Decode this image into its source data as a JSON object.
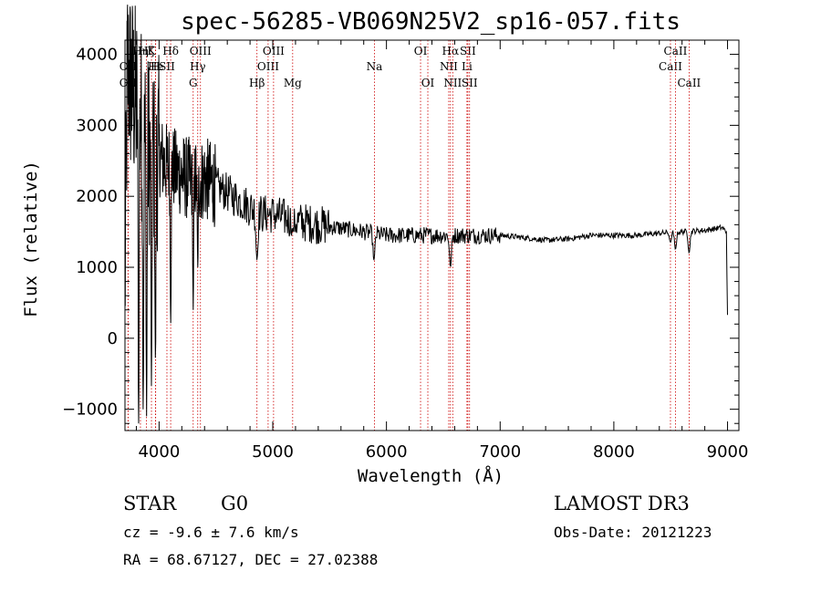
{
  "chart_data": {
    "type": "line",
    "title": "spec-56285-VB069N25V2_sp16-057.fits",
    "xlabel": "Wavelength (Å)",
    "ylabel": "Flux (relative)",
    "xlim": [
      3700,
      9100
    ],
    "ylim": [
      -1300,
      4200
    ],
    "x_ticks": [
      4000,
      5000,
      6000,
      7000,
      8000,
      9000
    ],
    "y_ticks": [
      -1000,
      0,
      1000,
      2000,
      3000,
      4000
    ],
    "series": [
      {
        "name": "flux",
        "anchors": [
          [
            3700,
            600
          ],
          [
            3720,
            3800
          ],
          [
            3750,
            3600
          ],
          [
            3800,
            3300
          ],
          [
            3850,
            3000
          ],
          [
            3900,
            2700
          ],
          [
            3950,
            2600
          ],
          [
            4000,
            2600
          ],
          [
            4050,
            2450
          ],
          [
            4100,
            2450
          ],
          [
            4150,
            2350
          ],
          [
            4200,
            2300
          ],
          [
            4250,
            2250
          ],
          [
            4300,
            2250
          ],
          [
            4350,
            2200
          ],
          [
            4400,
            2250
          ],
          [
            4500,
            2150
          ],
          [
            4600,
            2050
          ],
          [
            4700,
            1950
          ],
          [
            4800,
            1850
          ],
          [
            4900,
            1750
          ],
          [
            5000,
            1750
          ],
          [
            5200,
            1650
          ],
          [
            5400,
            1600
          ],
          [
            5600,
            1550
          ],
          [
            5800,
            1500
          ],
          [
            6000,
            1450
          ],
          [
            6200,
            1450
          ],
          [
            6400,
            1450
          ],
          [
            6600,
            1450
          ],
          [
            6800,
            1450
          ],
          [
            7000,
            1450
          ],
          [
            7200,
            1420
          ],
          [
            7400,
            1380
          ],
          [
            7600,
            1400
          ],
          [
            7800,
            1450
          ],
          [
            8000,
            1450
          ],
          [
            8200,
            1450
          ],
          [
            8400,
            1480
          ],
          [
            8600,
            1500
          ],
          [
            8800,
            1520
          ],
          [
            8950,
            1560
          ],
          [
            8990,
            1500
          ],
          [
            9000,
            300
          ]
        ],
        "absorption_dips": [
          [
            3820,
            -1200
          ],
          [
            3860,
            -1000
          ],
          [
            3890,
            -1100
          ],
          [
            3933,
            -700
          ],
          [
            3968,
            -300
          ],
          [
            4102,
            200
          ],
          [
            4300,
            400
          ],
          [
            4340,
            1000
          ],
          [
            4861,
            1100
          ],
          [
            5175,
            1500
          ],
          [
            5890,
            1100
          ],
          [
            6563,
            1000
          ],
          [
            8498,
            1350
          ],
          [
            8542,
            1250
          ],
          [
            8662,
            1200
          ]
        ]
      }
    ],
    "lines": [
      {
        "label": "OII",
        "wave": 3727,
        "row": 3
      },
      {
        "label": "OII",
        "wave": 3727,
        "row": 2
      },
      {
        "label": "Hη",
        "wave": 3836,
        "row": 1
      },
      {
        "label": "Hζ",
        "wave": 3889,
        "row": 1
      },
      {
        "label": "K",
        "wave": 3933,
        "row": 1
      },
      {
        "label": "H",
        "wave": 3968,
        "row": 2
      },
      {
        "label": "He",
        "wave": 3970,
        "row": 2
      },
      {
        "label": "SII",
        "wave": 4069,
        "row": 2
      },
      {
        "label": "Hδ",
        "wave": 4102,
        "row": 1
      },
      {
        "label": "G",
        "wave": 4300,
        "row": 3
      },
      {
        "label": "Hγ",
        "wave": 4340,
        "row": 2
      },
      {
        "label": "OIII",
        "wave": 4364,
        "row": 1
      },
      {
        "label": "Hβ",
        "wave": 4861,
        "row": 3
      },
      {
        "label": "OIII",
        "wave": 4959,
        "row": 2
      },
      {
        "label": "OIII",
        "wave": 5007,
        "row": 1
      },
      {
        "label": "Mg",
        "wave": 5175,
        "row": 3
      },
      {
        "label": "Na",
        "wave": 5894,
        "row": 2
      },
      {
        "label": "OI",
        "wave": 6300,
        "row": 1
      },
      {
        "label": "OI",
        "wave": 6364,
        "row": 3
      },
      {
        "label": "NII",
        "wave": 6548,
        "row": 2
      },
      {
        "label": "Hα",
        "wave": 6563,
        "row": 1
      },
      {
        "label": "NII",
        "wave": 6583,
        "row": 3
      },
      {
        "label": "Li",
        "wave": 6708,
        "row": 2
      },
      {
        "label": "SII",
        "wave": 6716,
        "row": 1
      },
      {
        "label": "SII",
        "wave": 6731,
        "row": 3
      },
      {
        "label": "CaII",
        "wave": 8498,
        "row": 2
      },
      {
        "label": "CaII",
        "wave": 8542,
        "row": 1
      },
      {
        "label": "CaII",
        "wave": 8662,
        "row": 3
      }
    ]
  },
  "info": {
    "class": "STAR",
    "subclass": "G0",
    "survey": "LAMOST DR3",
    "cz": "cz = -9.6 ± 7.6 km/s",
    "obs_date": "Obs-Date: 20121223",
    "radec": "RA =  68.67127, DEC =  27.02388"
  }
}
